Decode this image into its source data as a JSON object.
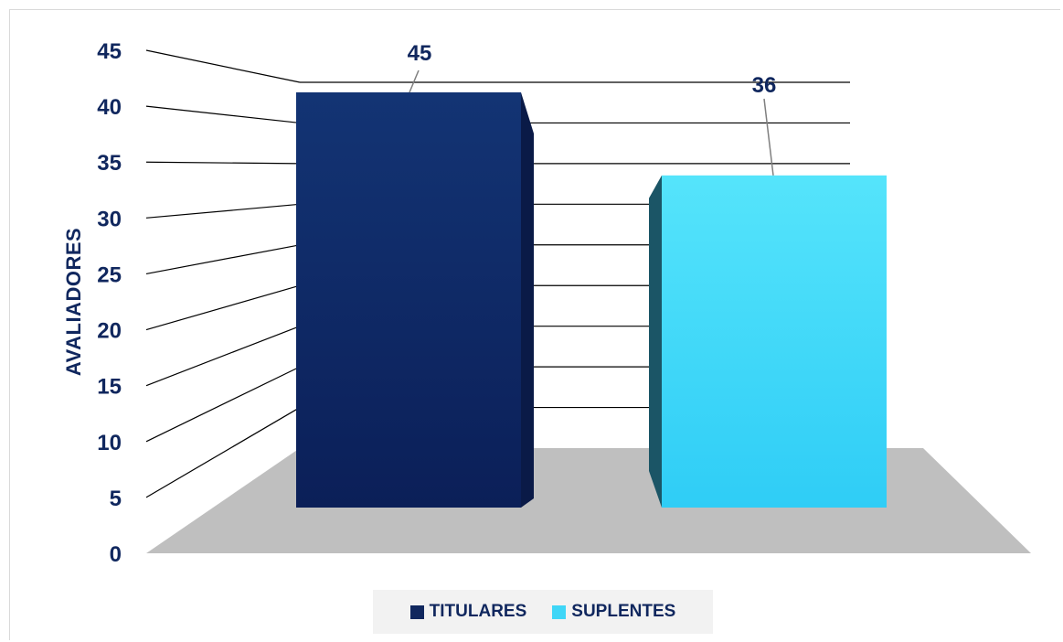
{
  "chart_data": {
    "type": "bar",
    "categories": [
      "TITULARES",
      "SUPLENTES"
    ],
    "series": [
      {
        "name": "TITULARES",
        "values": [
          45,
          null
        ],
        "color": "#10275e"
      },
      {
        "name": "SUPLENTES",
        "values": [
          null,
          36
        ],
        "color": "#3fd6f7"
      }
    ],
    "values": [
      45,
      36
    ],
    "data_labels": [
      "45",
      "36"
    ],
    "ylabel": "AVALIADORES",
    "xlabel": "",
    "ylim": [
      0,
      45
    ],
    "yticks": [
      "0",
      "5",
      "10",
      "15",
      "20",
      "25",
      "30",
      "35",
      "40",
      "45"
    ],
    "grid": true,
    "three_d": true,
    "legend_position": "bottom",
    "floor_color": "#bfbfbf"
  }
}
